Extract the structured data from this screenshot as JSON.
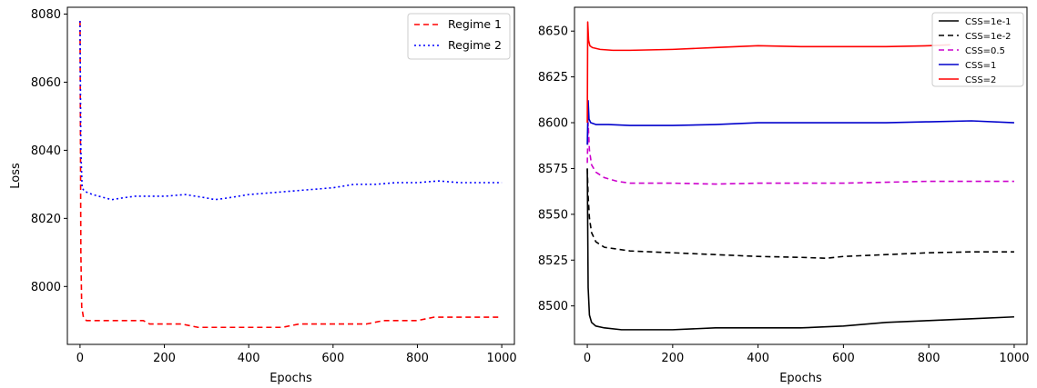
{
  "chart_data": [
    {
      "type": "line",
      "xlabel": "Epochs",
      "ylabel": "Loss",
      "xlim": [
        -30,
        1030
      ],
      "ylim": [
        7983,
        8082
      ],
      "xticks": [
        0,
        200,
        400,
        600,
        800,
        1000
      ],
      "yticks": [
        8000,
        8020,
        8040,
        8060,
        8080
      ],
      "legend_position": "upper-right",
      "series": [
        {
          "name": "Regime 1",
          "color": "#ff0000",
          "dash": "6,4",
          "points": [
            [
              0,
              8078
            ],
            [
              2,
              8010
            ],
            [
              4,
              7994
            ],
            [
              8,
              7991
            ],
            [
              15,
              7990
            ],
            [
              40,
              7990
            ],
            [
              60,
              7990
            ],
            [
              80,
              7990
            ],
            [
              100,
              7990
            ],
            [
              130,
              7990
            ],
            [
              150,
              7990
            ],
            [
              165,
              7989
            ],
            [
              200,
              7989
            ],
            [
              240,
              7989
            ],
            [
              280,
              7988
            ],
            [
              320,
              7988
            ],
            [
              360,
              7988
            ],
            [
              400,
              7988
            ],
            [
              440,
              7988
            ],
            [
              480,
              7988
            ],
            [
              520,
              7989
            ],
            [
              560,
              7989
            ],
            [
              600,
              7989
            ],
            [
              640,
              7989
            ],
            [
              680,
              7989
            ],
            [
              720,
              7990
            ],
            [
              760,
              7990
            ],
            [
              800,
              7990
            ],
            [
              840,
              7991
            ],
            [
              880,
              7991
            ],
            [
              920,
              7991
            ],
            [
              960,
              7991
            ],
            [
              1000,
              7991
            ]
          ]
        },
        {
          "name": "Regime 2",
          "color": "#0000ff",
          "dash": "2,3",
          "points": [
            [
              0,
              8078
            ],
            [
              2,
              8040
            ],
            [
              5,
              8029
            ],
            [
              10,
              8028
            ],
            [
              30,
              8027
            ],
            [
              60,
              8026
            ],
            [
              75,
              8025.5
            ],
            [
              100,
              8026
            ],
            [
              130,
              8026.5
            ],
            [
              160,
              8026.5
            ],
            [
              200,
              8026.5
            ],
            [
              250,
              8027
            ],
            [
              300,
              8026
            ],
            [
              320,
              8025.5
            ],
            [
              350,
              8026
            ],
            [
              400,
              8027
            ],
            [
              450,
              8027.5
            ],
            [
              500,
              8028
            ],
            [
              550,
              8028.5
            ],
            [
              600,
              8029
            ],
            [
              650,
              8030
            ],
            [
              700,
              8030
            ],
            [
              750,
              8030.5
            ],
            [
              800,
              8030.5
            ],
            [
              850,
              8031
            ],
            [
              900,
              8030.5
            ],
            [
              950,
              8030.5
            ],
            [
              1000,
              8030.5
            ]
          ]
        }
      ]
    },
    {
      "type": "line",
      "xlabel": "Epochs",
      "ylabel": "",
      "xlim": [
        -30,
        1030
      ],
      "ylim": [
        8479,
        8663
      ],
      "xticks": [
        0,
        200,
        400,
        600,
        800,
        1000
      ],
      "yticks": [
        8500,
        8525,
        8550,
        8575,
        8600,
        8625,
        8650
      ],
      "legend_position": "upper-right",
      "series": [
        {
          "name": "CSS=1e-1",
          "color": "#000000",
          "dash": "",
          "points": [
            [
              0,
              8575
            ],
            [
              2,
              8510
            ],
            [
              5,
              8495
            ],
            [
              10,
              8491
            ],
            [
              20,
              8489
            ],
            [
              40,
              8488
            ],
            [
              80,
              8487
            ],
            [
              150,
              8487
            ],
            [
              200,
              8487
            ],
            [
              300,
              8488
            ],
            [
              400,
              8488
            ],
            [
              500,
              8488
            ],
            [
              600,
              8489
            ],
            [
              700,
              8491
            ],
            [
              800,
              8492
            ],
            [
              900,
              8493
            ],
            [
              1000,
              8494
            ]
          ]
        },
        {
          "name": "CSS=1e-2",
          "color": "#000000",
          "dash": "6,4",
          "points": [
            [
              0,
              8575
            ],
            [
              2,
              8560
            ],
            [
              5,
              8548
            ],
            [
              10,
              8540
            ],
            [
              20,
              8535
            ],
            [
              40,
              8532
            ],
            [
              70,
              8531
            ],
            [
              100,
              8530
            ],
            [
              150,
              8529.5
            ],
            [
              200,
              8529
            ],
            [
              300,
              8528
            ],
            [
              400,
              8527
            ],
            [
              500,
              8526.5
            ],
            [
              560,
              8526
            ],
            [
              600,
              8527
            ],
            [
              700,
              8528
            ],
            [
              800,
              8529
            ],
            [
              900,
              8529.5
            ],
            [
              1000,
              8529.5
            ]
          ]
        },
        {
          "name": "CSS=0.5",
          "color": "#cc00cc",
          "dash": "6,4",
          "points": [
            [
              0,
              8578
            ],
            [
              2,
              8600
            ],
            [
              5,
              8585
            ],
            [
              10,
              8577
            ],
            [
              20,
              8573
            ],
            [
              40,
              8570
            ],
            [
              70,
              8568
            ],
            [
              100,
              8567
            ],
            [
              150,
              8567
            ],
            [
              200,
              8567
            ],
            [
              300,
              8566.5
            ],
            [
              400,
              8567
            ],
            [
              500,
              8567
            ],
            [
              600,
              8567
            ],
            [
              700,
              8567.5
            ],
            [
              800,
              8568
            ],
            [
              900,
              8568
            ],
            [
              1000,
              8568
            ]
          ]
        },
        {
          "name": "CSS=1",
          "color": "#0000cc",
          "dash": "",
          "points": [
            [
              0,
              8588
            ],
            [
              2,
              8612
            ],
            [
              4,
              8602
            ],
            [
              8,
              8600
            ],
            [
              20,
              8599
            ],
            [
              50,
              8599
            ],
            [
              100,
              8598.5
            ],
            [
              200,
              8598.5
            ],
            [
              300,
              8599
            ],
            [
              400,
              8600
            ],
            [
              500,
              8600
            ],
            [
              600,
              8600
            ],
            [
              700,
              8600
            ],
            [
              800,
              8600.5
            ],
            [
              900,
              8601
            ],
            [
              1000,
              8600
            ]
          ]
        },
        {
          "name": "CSS=2",
          "color": "#ff0000",
          "dash": "",
          "points": [
            [
              0,
              8600
            ],
            [
              1,
              8655
            ],
            [
              3,
              8645
            ],
            [
              6,
              8642
            ],
            [
              12,
              8641
            ],
            [
              30,
              8640
            ],
            [
              60,
              8639.5
            ],
            [
              100,
              8639.5
            ],
            [
              200,
              8640
            ],
            [
              300,
              8641
            ],
            [
              400,
              8642
            ],
            [
              500,
              8641.5
            ],
            [
              600,
              8641.5
            ],
            [
              700,
              8641.5
            ],
            [
              800,
              8642
            ],
            [
              850,
              8642.5
            ]
          ]
        }
      ]
    }
  ]
}
